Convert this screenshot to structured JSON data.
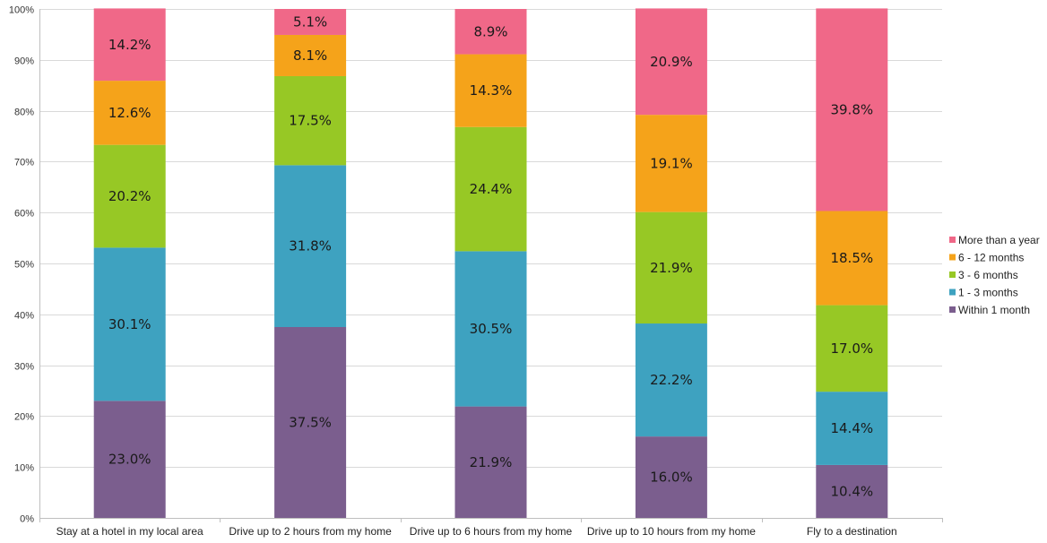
{
  "chart_data": {
    "type": "bar",
    "stacked": true,
    "percent": true,
    "categories": [
      "Stay at a hotel in my local area",
      "Drive up to 2 hours from my home",
      "Drive up to 6 hours from my home",
      "Drive up to 10 hours from my home",
      "Fly to a destination"
    ],
    "series": [
      {
        "name": "Within 1 month",
        "color": "#7B5E8E",
        "values": [
          23.0,
          37.5,
          21.9,
          16.0,
          10.4
        ],
        "labels": [
          "23.0%",
          "37.5%",
          "21.9%",
          "16.0%",
          "10.4%"
        ]
      },
      {
        "name": "1 - 3 months",
        "color": "#3EA2C0",
        "values": [
          30.1,
          31.8,
          30.5,
          22.2,
          14.4
        ],
        "labels": [
          "30.1%",
          "31.8%",
          "30.5%",
          "22.2%",
          "14.4%"
        ]
      },
      {
        "name": "3 - 6 months",
        "color": "#97C825",
        "values": [
          20.2,
          17.5,
          24.4,
          21.9,
          17.0
        ],
        "labels": [
          "20.2%",
          "17.5%",
          "24.4%",
          "21.9%",
          "17.0%"
        ]
      },
      {
        "name": "6 - 12 months",
        "color": "#F5A31A",
        "values": [
          12.6,
          8.1,
          14.3,
          19.1,
          18.5
        ],
        "labels": [
          "12.6%",
          "8.1%",
          "14.3%",
          "19.1%",
          "18.5%"
        ]
      },
      {
        "name": "More than a year",
        "color": "#F06888",
        "values": [
          14.2,
          5.1,
          8.9,
          20.9,
          39.8
        ],
        "labels": [
          "14.2%",
          "5.1%",
          "8.9%",
          "20.9%",
          "39.8%"
        ]
      }
    ],
    "yticks": [
      "0%",
      "10%",
      "20%",
      "30%",
      "40%",
      "50%",
      "60%",
      "70%",
      "80%",
      "90%",
      "100%"
    ],
    "ylim": [
      0,
      100
    ],
    "grid": true,
    "legend": "right",
    "legend_order": [
      "More than a year",
      "6 - 12 months",
      "3 - 6 months",
      "1 - 3 months",
      "Within 1 month"
    ]
  }
}
